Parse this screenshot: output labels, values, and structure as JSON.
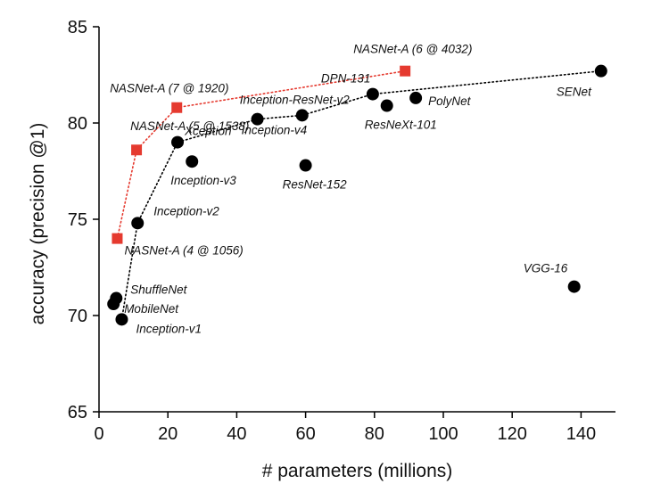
{
  "chart_data": {
    "type": "scatter",
    "title": "",
    "xlabel": "# parameters (millions)",
    "ylabel": "accuracy (precision @1)",
    "xlim": [
      0,
      150
    ],
    "ylim": [
      65,
      85
    ],
    "xticks": [
      0,
      20,
      40,
      60,
      80,
      100,
      120,
      140
    ],
    "yticks": [
      65,
      70,
      75,
      80,
      85
    ],
    "grid": false,
    "series": [
      {
        "marker": "circle",
        "color": "#000000",
        "points": [
          {
            "label": "Inception-v1",
            "x": 6.6,
            "y": 69.8
          },
          {
            "label": "MobileNet",
            "x": 4.2,
            "y": 70.6
          },
          {
            "label": "ShuffleNet",
            "x": 5.0,
            "y": 70.9
          },
          {
            "label": "Inception-v2",
            "x": 11.2,
            "y": 74.8
          },
          {
            "label": "Inception-v3",
            "x": 27.0,
            "y": 78.0
          },
          {
            "label": "Xception",
            "x": 22.8,
            "y": 79.0
          },
          {
            "label": "ResNet-152",
            "x": 60.0,
            "y": 77.8
          },
          {
            "label": "Inception-v4",
            "x": 46.0,
            "y": 80.2
          },
          {
            "label": "Inception-ResNet-v2",
            "x": 59.0,
            "y": 80.4
          },
          {
            "label": "ResNeXt-101",
            "x": 83.6,
            "y": 80.9
          },
          {
            "label": "DPN-131",
            "x": 79.5,
            "y": 81.5
          },
          {
            "label": "PolyNet",
            "x": 92.0,
            "y": 81.3
          },
          {
            "label": "SENet",
            "x": 145.8,
            "y": 82.7
          },
          {
            "label": "VGG-16",
            "x": 138.0,
            "y": 71.5
          }
        ]
      },
      {
        "marker": "square",
        "color": "#e53a2f",
        "points": [
          {
            "label": "NASNet-A (4 @ 1056)",
            "x": 5.3,
            "y": 74.0
          },
          {
            "label": "NASNet-A (5 @ 1538)",
            "x": 10.9,
            "y": 78.6
          },
          {
            "label": "NASNet-A (7 @ 1920)",
            "x": 22.6,
            "y": 80.8
          },
          {
            "label": "NASNet-A (6 @ 4032)",
            "x": 88.9,
            "y": 82.7
          }
        ]
      }
    ],
    "frontier_lines": [
      {
        "color": "#000000",
        "points": [
          [
            6.6,
            69.8
          ],
          [
            11.2,
            74.8
          ],
          [
            22.8,
            79.0
          ],
          [
            46.0,
            80.2
          ],
          [
            59.0,
            80.4
          ],
          [
            79.5,
            81.5
          ],
          [
            145.8,
            82.7
          ]
        ]
      },
      {
        "color": "#e53a2f",
        "points": [
          [
            5.3,
            74.0
          ],
          [
            10.9,
            78.6
          ],
          [
            22.6,
            80.8
          ],
          [
            88.9,
            82.7
          ]
        ]
      }
    ]
  }
}
